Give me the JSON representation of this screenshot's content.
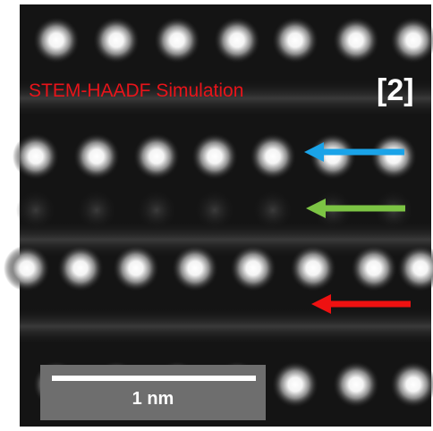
{
  "image": {
    "label": "STEM-HAADF Simulation",
    "reference": "[2]",
    "scale_bar": "1 nm"
  }
}
